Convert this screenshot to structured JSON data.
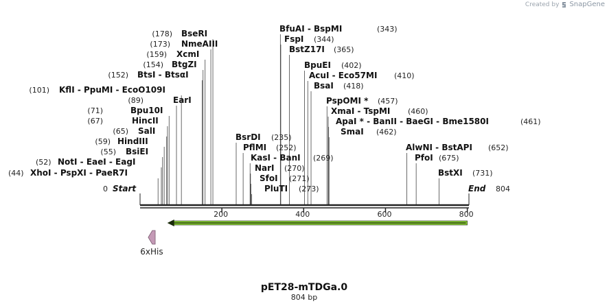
{
  "watermark": {
    "prefix": "Created by",
    "brand": "SnapGene"
  },
  "map": {
    "name": "pET28-mTDGa.0",
    "length_text": "804 bp",
    "length": 804,
    "start_label": "Start",
    "end_label": "End",
    "start_pos": 0,
    "end_pos": 804,
    "ticks": [
      "200",
      "400",
      "600",
      "800"
    ],
    "tick_values": [
      200,
      400,
      600,
      800
    ]
  },
  "sites": [
    {
      "pos": 178,
      "enzymes": [
        "BseRI"
      ]
    },
    {
      "pos": 173,
      "enzymes": [
        "NmeAIII"
      ]
    },
    {
      "pos": 159,
      "enzymes": [
        "XcmI"
      ]
    },
    {
      "pos": 154,
      "enzymes": [
        "BtgZI"
      ]
    },
    {
      "pos": 152,
      "enzymes": [
        "BtsI",
        "BtsαI"
      ]
    },
    {
      "pos": 101,
      "enzymes": [
        "KflI",
        "PpuMI",
        "EcoO109I"
      ]
    },
    {
      "pos": 89,
      "enzymes": [
        "EarI"
      ]
    },
    {
      "pos": 71,
      "enzymes": [
        "Bpu10I"
      ]
    },
    {
      "pos": 67,
      "enzymes": [
        "HincII"
      ]
    },
    {
      "pos": 65,
      "enzymes": [
        "SalI"
      ]
    },
    {
      "pos": 59,
      "enzymes": [
        "HindIII"
      ]
    },
    {
      "pos": 55,
      "enzymes": [
        "BsiEI"
      ]
    },
    {
      "pos": 52,
      "enzymes": [
        "NotI",
        "EaeI",
        "EagI"
      ]
    },
    {
      "pos": 44,
      "enzymes": [
        "XhoI",
        "PspXI",
        "PaeR7I"
      ]
    },
    {
      "pos": 343,
      "enzymes": [
        "BfuAI",
        "BspMI"
      ]
    },
    {
      "pos": 344,
      "enzymes": [
        "FspI"
      ]
    },
    {
      "pos": 365,
      "enzymes": [
        "BstZ17I"
      ]
    },
    {
      "pos": 402,
      "enzymes": [
        "BpuEI"
      ]
    },
    {
      "pos": 410,
      "enzymes": [
        "AcuI",
        "Eco57MI"
      ]
    },
    {
      "pos": 418,
      "enzymes": [
        "BsaI"
      ]
    },
    {
      "pos": 457,
      "enzymes": [
        "PspOMI *"
      ]
    },
    {
      "pos": 460,
      "enzymes": [
        "XmaI",
        "TspMI"
      ]
    },
    {
      "pos": 461,
      "enzymes": [
        "ApaI *",
        "BanII",
        "BaeGI",
        "Bme1580I"
      ]
    },
    {
      "pos": 462,
      "enzymes": [
        "SmaI"
      ]
    },
    {
      "pos": 235,
      "enzymes": [
        "BsrDI"
      ]
    },
    {
      "pos": 252,
      "enzymes": [
        "PflMI"
      ]
    },
    {
      "pos": 269,
      "enzymes": [
        "KasI",
        "BanI"
      ]
    },
    {
      "pos": 270,
      "enzymes": [
        "NarI"
      ]
    },
    {
      "pos": 271,
      "enzymes": [
        "SfoI"
      ]
    },
    {
      "pos": 273,
      "enzymes": [
        "PluTI"
      ]
    },
    {
      "pos": 652,
      "enzymes": [
        "AlwNI",
        "BstAPI"
      ]
    },
    {
      "pos": 675,
      "enzymes": [
        "PfoI"
      ]
    },
    {
      "pos": 731,
      "enzymes": [
        "BstXI"
      ]
    }
  ],
  "features": [
    {
      "name": "6xHis",
      "start": 20,
      "end": 37,
      "color": "#c49ab6",
      "direction": "left"
    },
    {
      "name": "",
      "start": 70,
      "end": 800,
      "color": "#88cc33",
      "direction": "left"
    }
  ],
  "colors": {
    "backbone": "#222222",
    "site_line": "#444444",
    "orf_stroke": "#222222"
  }
}
